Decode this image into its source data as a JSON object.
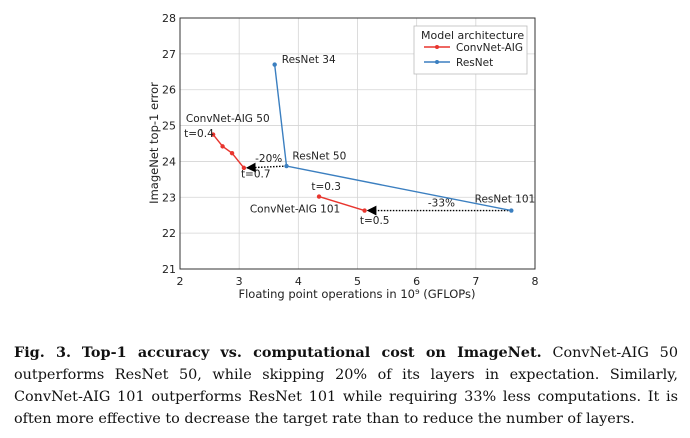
{
  "chart_data": {
    "type": "line",
    "xlabel": "Floating point operations in 10⁹ (GFLOPs)",
    "ylabel": "ImageNet top-1 error",
    "xlim": [
      2,
      8
    ],
    "ylim": [
      21,
      28
    ],
    "xticks": [
      "2",
      "3",
      "4",
      "5",
      "6",
      "7",
      "8"
    ],
    "yticks": [
      "21",
      "22",
      "23",
      "24",
      "25",
      "26",
      "27",
      "28"
    ],
    "grid": true,
    "legend_title": "Model architecture",
    "legend_position": "top-right",
    "series": [
      {
        "name": "ConvNet-AIG",
        "color": "#e8352e",
        "groups": [
          {
            "x": [
              2.56,
              2.72,
              2.88,
              3.08
            ],
            "y": [
              24.75,
              24.42,
              24.23,
              23.82
            ]
          },
          {
            "x": [
              4.35,
              5.12
            ],
            "y": [
              23.02,
              22.63
            ]
          }
        ]
      },
      {
        "name": "ResNet",
        "color": "#3b7fc0",
        "groups": [
          {
            "x": [
              3.6,
              3.8,
              7.6
            ],
            "y": [
              26.7,
              23.87,
              22.63
            ]
          }
        ]
      }
    ],
    "arrows": [
      {
        "from_x": 3.8,
        "from_y": 23.87,
        "to_x": 3.08,
        "to_y": 23.82,
        "label": "-20%"
      },
      {
        "from_x": 7.6,
        "from_y": 22.63,
        "to_x": 5.12,
        "to_y": 22.63,
        "label": "-33%"
      }
    ],
    "annotations": [
      {
        "text": "ConvNet-AIG 50",
        "x": 2.1,
        "y": 25.1
      },
      {
        "text": "t=0.4",
        "x": 2.07,
        "y": 24.68
      },
      {
        "text": "t=0.7",
        "x": 3.03,
        "y": 23.55
      },
      {
        "text": "ResNet 34",
        "x": 3.72,
        "y": 26.75
      },
      {
        "text": "ResNet 50",
        "x": 3.9,
        "y": 24.05
      },
      {
        "text": "ResNet 101",
        "x": 6.98,
        "y": 22.85
      },
      {
        "text": "t=0.3",
        "x": 4.22,
        "y": 23.2
      },
      {
        "text": "ConvNet-AIG 101",
        "x": 3.18,
        "y": 22.58
      },
      {
        "text": "t=0.5",
        "x": 5.04,
        "y": 22.26
      }
    ]
  },
  "caption": {
    "label": "Fig. 3.",
    "title": "Top-1 accuracy vs. computational cost on ImageNet.",
    "body": "ConvNet-AIG 50 outperforms ResNet 50, while skipping 20% of its layers in expectation. Similarly, ConvNet-AIG 101 outperforms ResNet 101 while requiring 33% less computations. It is often more effective to decrease the target rate than to reduce the number of layers."
  }
}
